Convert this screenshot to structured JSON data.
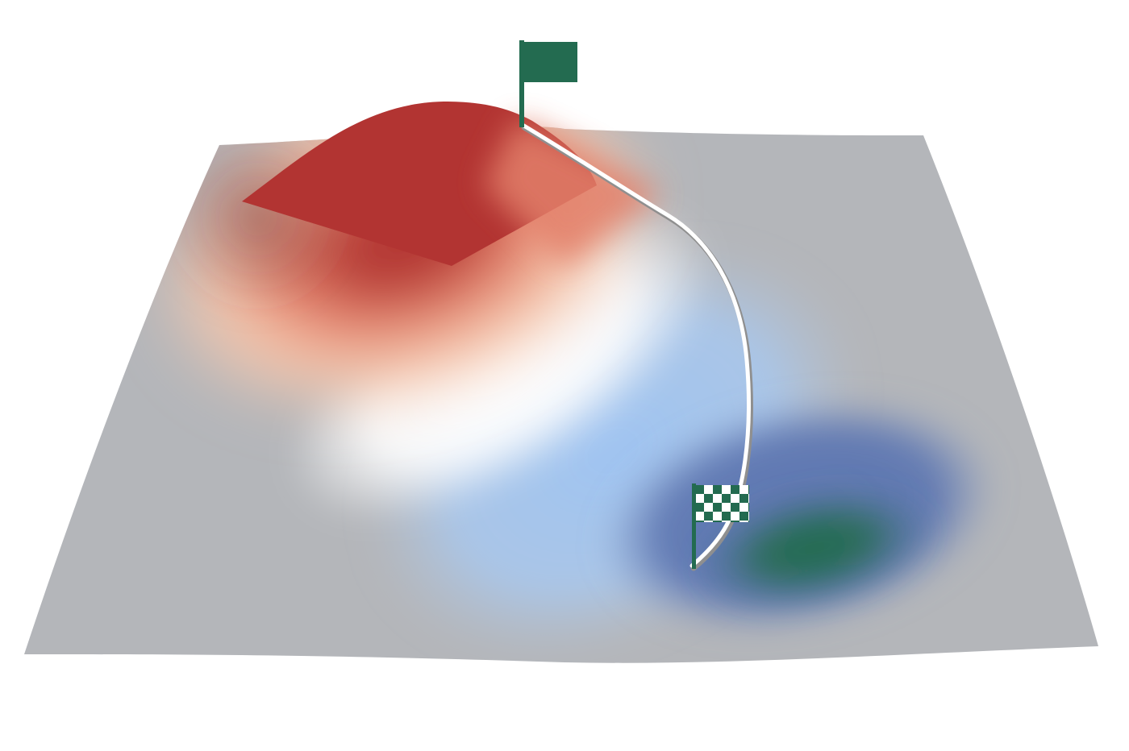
{
  "scene": {
    "kind": "3d-loss-surface",
    "surface": {
      "base_color": "#b4b6ba",
      "peak_colors": [
        "#b23432",
        "#e3806a",
        "#f5c7ad",
        "#ffffff"
      ],
      "valley_colors": [
        "#9fc4f2",
        "#5f78b2",
        "#236b50"
      ]
    },
    "path": {
      "color": "#ffffff",
      "shadow_color": "#8f8f8f"
    },
    "start_flag": {
      "icon": "solid-flag-icon",
      "color": "#236b50"
    },
    "finish_flag": {
      "icon": "checkered-flag-icon",
      "colors": [
        "#236b50",
        "#ffffff"
      ]
    }
  }
}
